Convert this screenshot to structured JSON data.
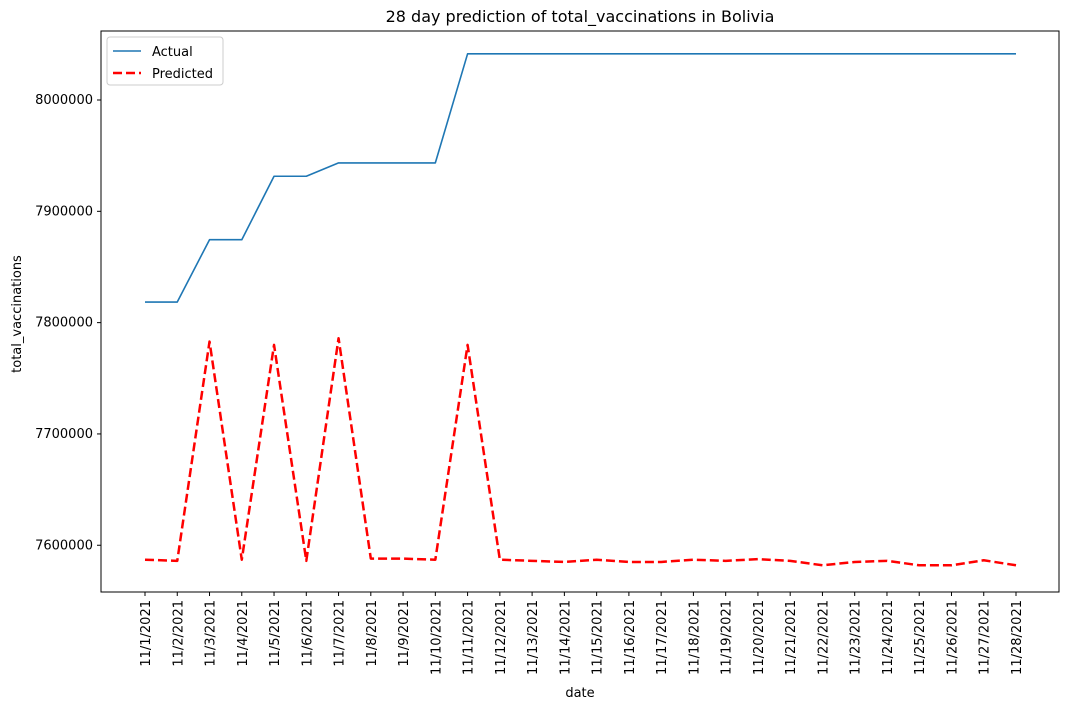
{
  "chart_data": {
    "type": "line",
    "title": "28 day prediction of total_vaccinations in Bolivia",
    "xlabel": "date",
    "ylabel": "total_vaccinations",
    "categories": [
      "11/1/2021",
      "11/2/2021",
      "11/3/2021",
      "11/4/2021",
      "11/5/2021",
      "11/6/2021",
      "11/7/2021",
      "11/8/2021",
      "11/9/2021",
      "11/10/2021",
      "11/11/2021",
      "11/12/2021",
      "11/13/2021",
      "11/14/2021",
      "11/15/2021",
      "11/16/2021",
      "11/17/2021",
      "11/18/2021",
      "11/19/2021",
      "11/20/2021",
      "11/21/2021",
      "11/22/2021",
      "11/23/2021",
      "11/24/2021",
      "11/25/2021",
      "11/26/2021",
      "11/27/2021",
      "11/28/2021"
    ],
    "y_ticks": [
      7600000,
      7700000,
      7800000,
      7900000,
      8000000
    ],
    "y_tick_labels": [
      "7600000",
      "7700000",
      "7800000",
      "7900000",
      "8000000"
    ],
    "ylim": [
      7558000,
      8062000
    ],
    "grid": false,
    "legend_position": "top-left",
    "series": [
      {
        "name": "Actual",
        "color": "#1f77b4",
        "style": "solid",
        "values": [
          7818500,
          7818500,
          7874500,
          7874500,
          7931500,
          7931500,
          7943500,
          7943500,
          7943500,
          7943500,
          8041500,
          8041500,
          8041500,
          8041500,
          8041500,
          8041500,
          8041500,
          8041500,
          8041500,
          8041500,
          8041500,
          8041500,
          8041500,
          8041500,
          8041500,
          8041500,
          8041500,
          8041500
        ]
      },
      {
        "name": "Predicted",
        "color": "#ff0000",
        "style": "dashed",
        "values": [
          7587000,
          7586000,
          7783000,
          7587000,
          7780000,
          7586000,
          7786000,
          7588000,
          7588000,
          7587000,
          7780000,
          7587000,
          7586000,
          7585000,
          7587000,
          7585000,
          7585000,
          7587000,
          7586000,
          7587500,
          7586000,
          7582000,
          7585000,
          7586000,
          7582000,
          7582000,
          7586500,
          7582000
        ]
      }
    ]
  }
}
